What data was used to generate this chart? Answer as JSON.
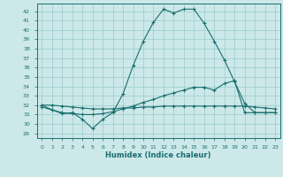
{
  "xlabel": "Humidex (Indice chaleur)",
  "background_color": "#cce8e8",
  "grid_color": "#99cccc",
  "line_color": "#1a6e6e",
  "xlim": [
    -0.5,
    23.5
  ],
  "ylim": [
    28.5,
    42.8
  ],
  "yticks": [
    29,
    30,
    31,
    32,
    33,
    34,
    35,
    36,
    37,
    38,
    39,
    40,
    41,
    42
  ],
  "xticks": [
    0,
    1,
    2,
    3,
    4,
    5,
    6,
    7,
    8,
    9,
    10,
    11,
    12,
    13,
    14,
    15,
    16,
    17,
    18,
    19,
    20,
    21,
    22,
    23
  ],
  "line1_x": [
    0,
    1,
    2,
    3,
    4,
    5,
    6,
    7,
    8,
    9,
    10,
    11,
    12,
    13,
    14,
    15,
    16,
    17,
    18,
    19,
    20,
    21,
    22,
    23
  ],
  "line1_y": [
    32.0,
    31.5,
    31.1,
    31.2,
    30.5,
    29.5,
    30.5,
    31.2,
    33.2,
    36.2,
    38.8,
    40.8,
    42.2,
    41.8,
    42.2,
    42.2,
    40.7,
    38.8,
    36.8,
    34.5,
    32.2,
    31.2,
    31.2,
    31.2
  ],
  "line2_x": [
    0,
    1,
    2,
    3,
    4,
    5,
    6,
    7,
    8,
    9,
    10,
    11,
    12,
    13,
    14,
    15,
    16,
    17,
    18,
    19,
    20,
    21,
    22,
    23
  ],
  "line2_y": [
    31.8,
    31.5,
    31.2,
    31.1,
    31.0,
    31.0,
    31.1,
    31.3,
    31.6,
    31.9,
    32.3,
    32.6,
    33.0,
    33.3,
    33.6,
    33.9,
    33.9,
    33.6,
    34.3,
    34.6,
    31.2,
    31.2,
    31.2,
    31.2
  ],
  "line3_x": [
    0,
    1,
    2,
    3,
    4,
    5,
    6,
    7,
    8,
    9,
    10,
    11,
    12,
    13,
    14,
    15,
    16,
    17,
    18,
    19,
    20,
    21,
    22,
    23
  ],
  "line3_y": [
    32.0,
    32.0,
    31.9,
    31.8,
    31.7,
    31.6,
    31.6,
    31.6,
    31.7,
    31.7,
    31.8,
    31.8,
    31.9,
    31.9,
    31.9,
    31.9,
    31.9,
    31.9,
    31.9,
    31.9,
    31.9,
    31.8,
    31.7,
    31.6
  ]
}
